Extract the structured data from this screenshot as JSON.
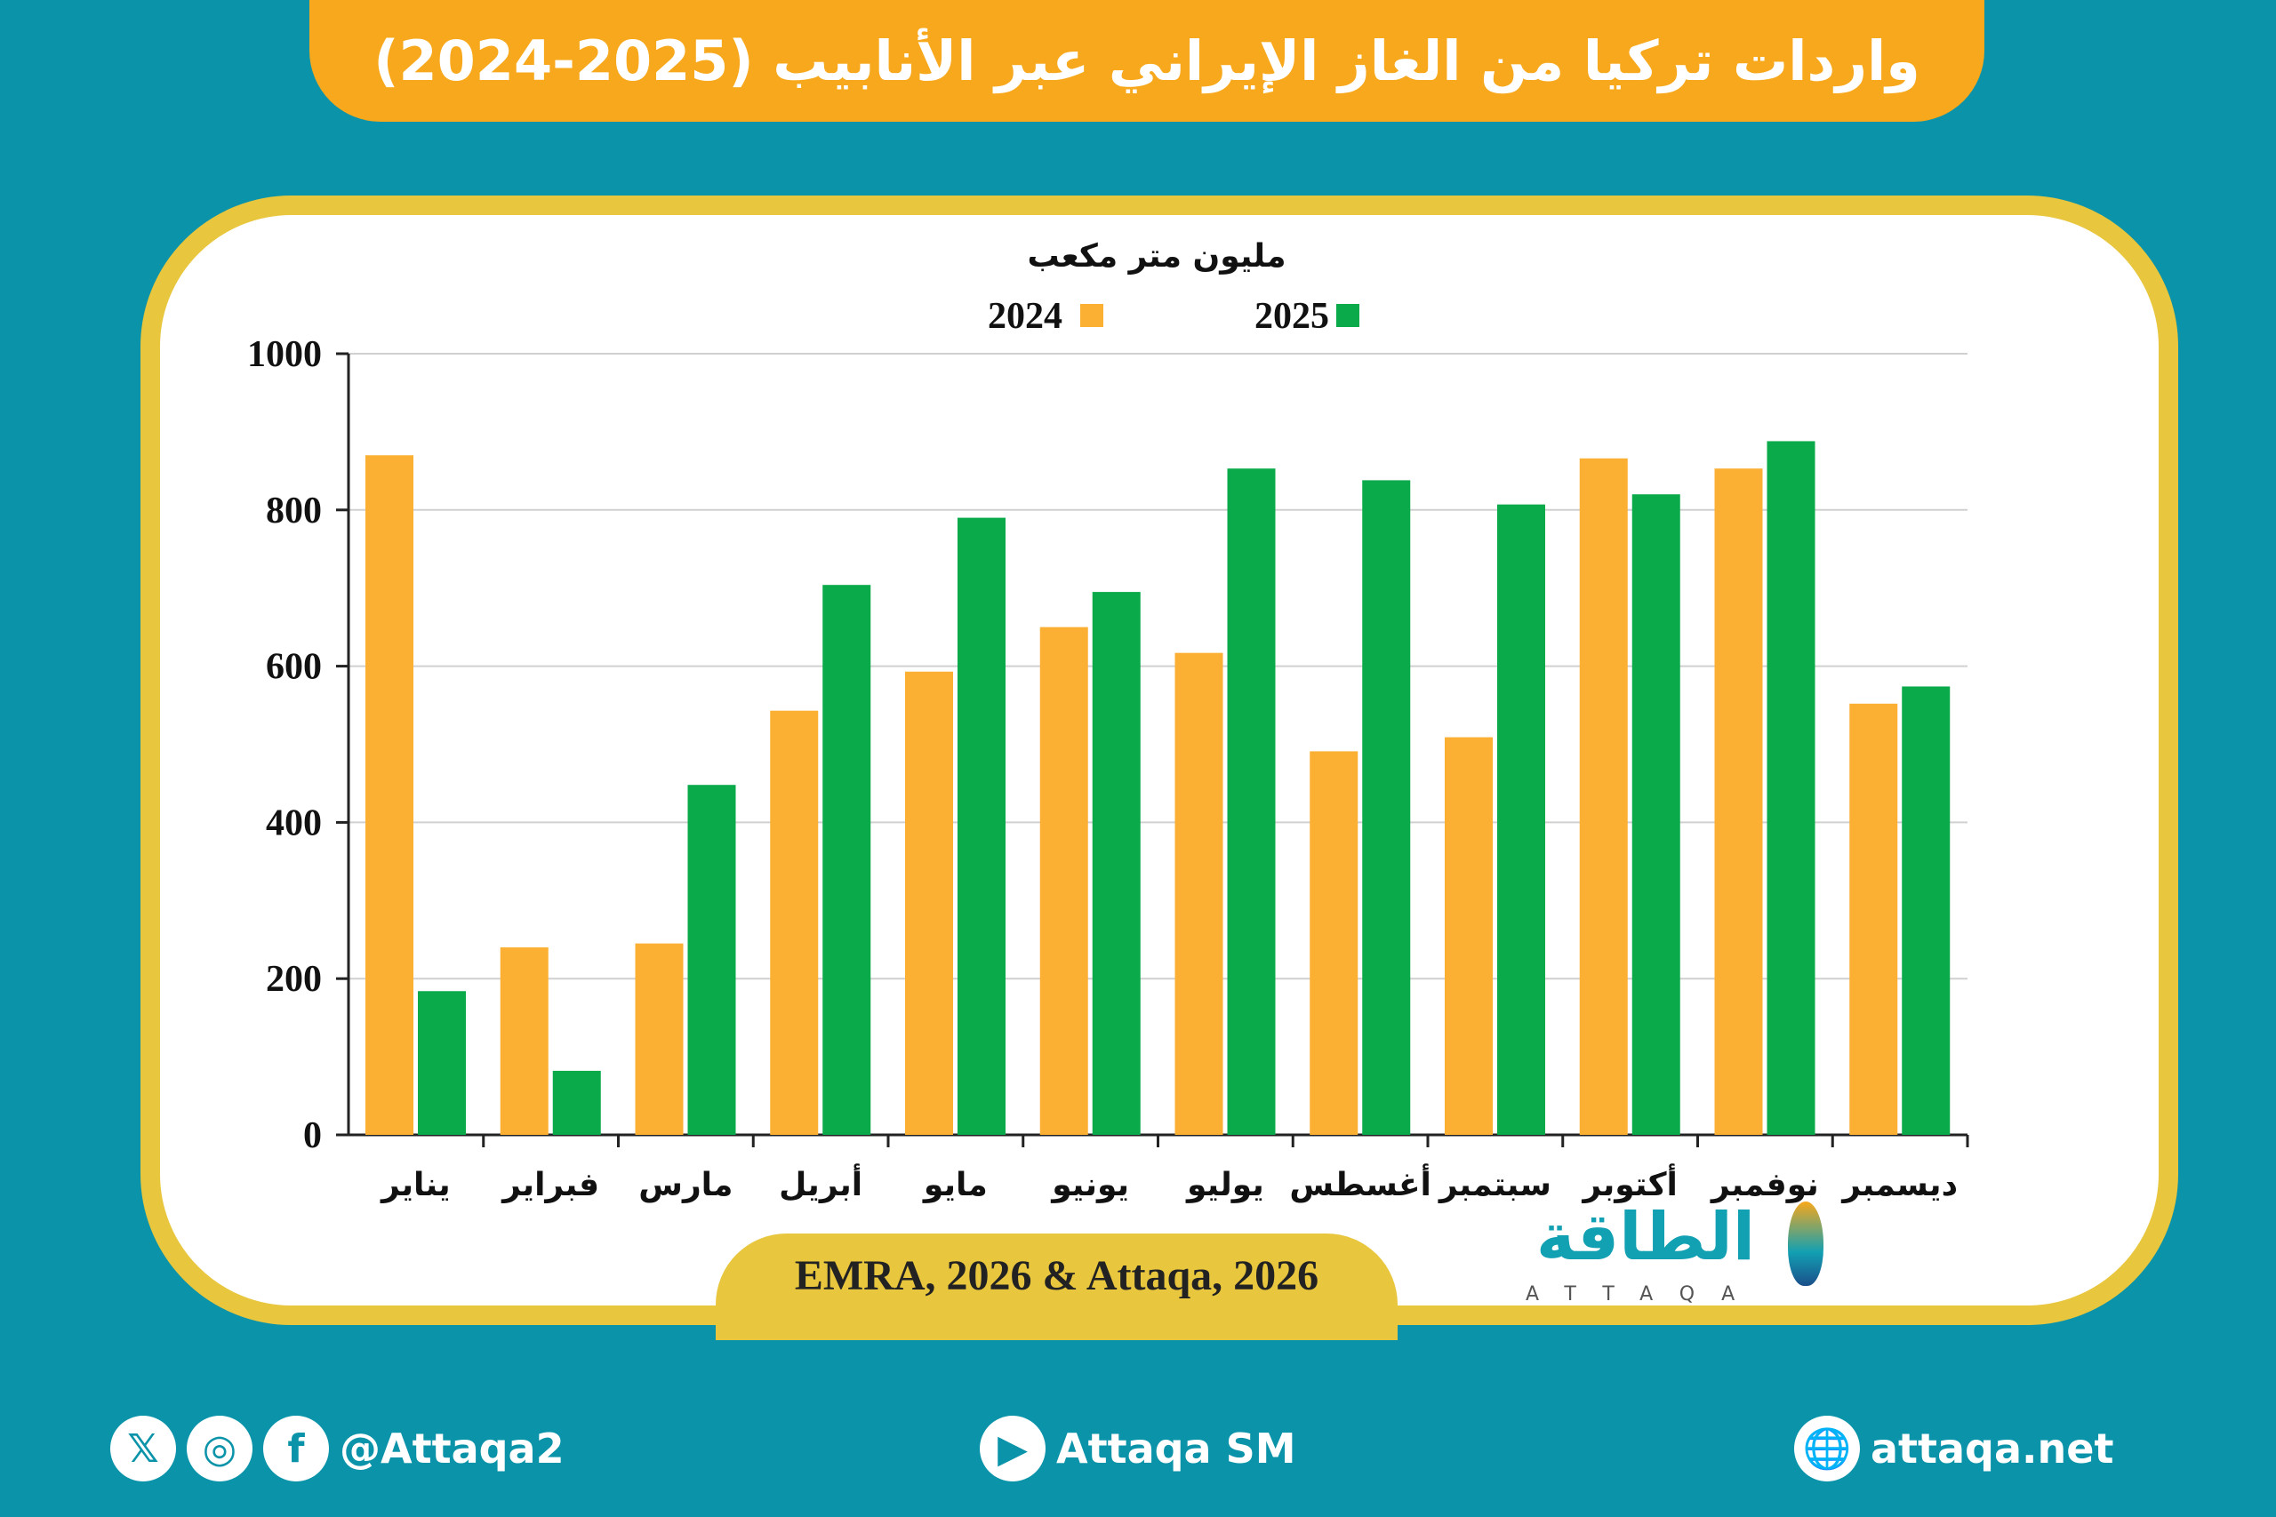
{
  "header": {
    "title": "واردات تركيا من الغاز الإيراني عبر الأنابيب (2025-2024)"
  },
  "chart_data": {
    "type": "bar",
    "ylabel": "مليون متر مكعب",
    "ylim": [
      0,
      1000
    ],
    "yticks": [
      "0",
      "200",
      "400",
      "600",
      "800",
      "1000"
    ],
    "grid": true,
    "legend_position": "top",
    "categories": [
      "يناير",
      "فبراير",
      "مارس",
      "أبريل",
      "مايو",
      "يونيو",
      "يوليو",
      "أغسطس",
      "سبتمبر",
      "أكتوبر",
      "نوفمبر",
      "ديسمبر"
    ],
    "series": [
      {
        "name": "2024",
        "color": "#fbb034",
        "values": [
          870,
          240,
          245,
          543,
          593,
          650,
          617,
          491,
          509,
          866,
          853,
          552
        ]
      },
      {
        "name": "2025",
        "color": "#0aaa4a",
        "values": [
          184,
          82,
          448,
          704,
          790,
          695,
          853,
          838,
          807,
          820,
          888,
          574
        ]
      }
    ]
  },
  "source": "EMRA, 2026 & Attaqa, 2026",
  "logo": {
    "arabic": "الطاقة",
    "english": "ATTAQA"
  },
  "footer": {
    "social_handle": "@Attaqa2",
    "youtube": "Attaqa SM",
    "website": "attaqa.net",
    "icons": [
      "x-icon",
      "instagram-icon",
      "facebook-icon",
      "youtube-icon",
      "globe-icon"
    ]
  }
}
